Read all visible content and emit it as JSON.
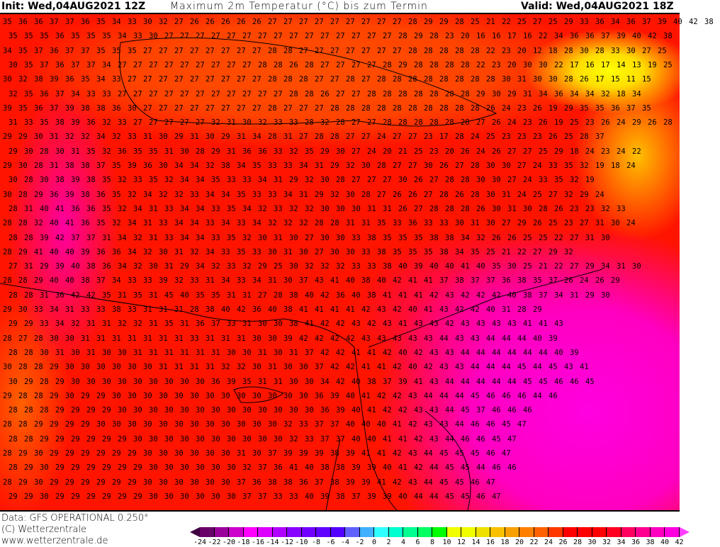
{
  "header": {
    "init": "Init: Wed,04AUG2021 12Z",
    "title": "Maximum 2m Temperatur (°C) bis zum Termin",
    "valid": "Valid: Wed,04AUG2021 18Z"
  },
  "map": {
    "rows": [
      "35 36 36 37 37 36 35 34 33 30 32 27 26 26 26 26 26 27 27 27 27 27 27 27 27 27 28 29 29 28 25 21 22 25 27 25 29 33 36 34 36 37 39 40 42 38",
      "35 35 35 36 35 35 35 34 33 30 27 27 27 27 27 27 27 27 27 27 27 27 27 27 27 28 29 28 23 20 16 16 17 16 22 34 36 36 37 39 40 42 38",
      "34 35 37 36 37 37 35 35 35 27 27 27 27 27 27 27 27 28 28 27 27 27 27 27 27 27 28 28 28 28 28 22 23 20 12 18 28 30 28 33 30 27 25",
      "30 35 37 36 37 37 34 27 27 27 27 27 27 27 27 27 28 28 26 28 27 27 27 27 28 29 28 28 28 28 22 23 20 30 30 22 17 16 17 14 13 19 25",
      "30 32 38 39 36 35 34 33 27 27 27 27 27 27 27 27 27 28 28 28 27 27 28 27 28 28 28 28 28 28 28 28 30 31 30 30 28 26 17 15 11 15",
      "32 35 36 37 34 33 33 27 27 27 27 27 27 27 27 27 27 27 28 28 26 27 27 28 28 28 28 28 28 28 29 30 29 31 34 36 34 34 32 18 34",
      "39 35 36 37 39 38 38 36 30 27 27 27 27 27 27 27 27 28 27 27 27 28 28 28 28 28 28 28 28 28 28 26 24 23 26 19 29 35 35 36 37 35",
      "31 33 35 38 39 36 32 33 27 27 27 27 27 32 31 30 32 33 33 28 32 28 27 27 28 28 28 28 28 28 27 26 24 23 26 19 25 23 26 24 29 26 28",
      "29 29 30 31 32 32 34 32 33 31 30 29 31 30 29 31 34 28 31 27 28 28 27 27 24 27 27 23 17 28 24 25 23 23 23 26 25 28 37",
      "29 30 28 30 31 35 32 36 35 35 31 30 28 29 31 36 36 33 32 35 29 30 27 24 20 21 25 23 20 26 24 26 27 27 25 29 18 24 23 24 22",
      "29 30 28 31 38 38 37 35 39 36 30 34 34 32 38 34 35 33 33 34 31 29 32 30 28 27 27 30 26 27 28 30 30 27 24 33 35 32 19 18 24",
      "30 28 30 38 39 38 35 32 33 35 32 34 34 35 33 33 34 31 29 32 30 28 27 27 27 30 26 27 28 28 30 30 27 24 33 35 32 19",
      "30 28 29 36 39 38 36 35 32 34 32 32 33 34 34 35 33 33 34 31 29 32 30 28 27 26 26 27 28 26 28 30 31 24 25 27 32 29 24",
      "28 31 40 41 36 36 35 32 34 31 33 34 34 33 35 34 32 33 32 32 30 30 30 31 31 26 27 28 28 28 26 30 31 30 28 26 23 23 32 33",
      "28 28 32 40 41 36 35 32 34 31 33 34 34 33 34 33 34 32 32 32 28 28 31 31 35 33 36 33 33 30 31 30 27 29 26 25 23 27 31 30 24",
      "28 28 39 42 37 37 31 34 32 31 33 34 34 33 35 32 30 31 30 27 30 30 33 38 35 35 35 38 38 34 32 26 26 25 25 22 27 31 30",
      "28 29 41 40 40 39 36 36 34 32 30 31 32 34 33 35 33 30 31 30 27 30 30 33 38 35 35 35 38 34 35 25 21 22 27 29 32",
      "27 31 29 39 40 38 36 34 32 30 31 29 34 32 33 32 29 25 30 32 32 32 33 33 38 40 39 40 40 41 40 35 30 25 21 22 27 29 34 31 30",
      "28 28 29 40 40 38 37 34 33 33 39 32 33 31 34 33 34 31 30 37 43 41 40 38 40 42 41 41 37 38 37 37 36 38 35 37 26 24 26 29",
      "28 28 31 36 42 42 35 31 35 31 45 40 35 35 31 31 27 28 38 40 42 36 40 38 41 41 41 42 43 42 42 42 40 38 37 34 31 29 30",
      "29 30 33 34 31 33 33 38 33 31 31 31 28 38 40 42 36 40 38 41 41 41 41 42 43 42 40 41 43 42 42 40 31 28 29",
      "29 29 33 34 32 31 31 32 32 31 35 31 36 37 33 31 30 30 38 41 42 42 43 42 43 41 43 43 42 43 43 43 43 41 41 43",
      "28 27 28 30 30 31 31 31 31 31 31 31 33 31 31 31 30 30 39 42 42 42 42 43 43 43 43 43 44 43 43 44 44 44 40 39",
      "28 28 30 31 30 31 30 30 31 31 31 31 31 31 30 30 31 30 31 37 42 42 41 41 42 40 42 43 43 44 44 44 44 44 44 40 39",
      "30 28 28 29 30 30 30 30 30 30 31 31 31 31 32 32 30 31 30 30 37 42 42 41 41 42 40 42 43 43 44 44 44 45 44 45 43 41",
      "30 29 28 29 30 30 30 30 30 30 30 30 30 36 39 35 31 31 30 30 34 42 40 38 37 39 41 43 44 44 44 44 44 45 45 46 46 45",
      "29 28 28 29 30 29 29 30 30 30 30 30 30 30 30 30 30 30 30 30 36 39 40 41 42 42 43 44 44 44 45 46 46 46 44 46",
      "28 28 28 29 29 29 29 30 30 30 30 30 30 30 30 30 30 30 30 30 36 39 40 41 42 42 43 43 44 45 37 46 46 46",
      "28 28 29 29 29 29 30 30 30 30 30 30 30 30 30 30 30 30 32 33 37 37 40 40 40 41 42 43 43 44 46 46 45 47",
      "28 28 29 29 29 29 29 29 30 30 30 30 30 30 30 30 30 30 32 33 37 37 40 40 41 41 42 43 44 46 46 45 47",
      "28 29 30 29 29 29 29 29 29 30 30 30 30 30 30 31 30 37 39 39 39 38 39 41 41 42 43 44 45 45 45 46 47",
      "28 29 30 29 29 29 29 29 29 30 30 30 30 30 30 32 37 36 41 40 38 38 39 39 40 41 42 44 45 45 44 46 46",
      "28 29 30 29 29 29 29 29 29 30 30 30 30 30 30 37 36 38 38 36 37 38 39 39 41 42 43 44 45 45 46 47",
      "29 29 30 29 29 29 29 29 29 30 30 30 30 30 30 37 37 33 33 40 39 38 37 39 39 40 44 44 45 45 46 47"
    ]
  },
  "footer": {
    "data_source": "Data: GFS OPERATIONAL 0.250°",
    "copyright": "(C) Wetterzentrale",
    "website": "www.wetterzentrale.de"
  },
  "legend": {
    "low_arrow_color": "#400040",
    "high_arrow_color": "#ff40ff",
    "colors": [
      "#680068",
      "#9a009a",
      "#cc00cc",
      "#ff00ff",
      "#dd00ff",
      "#b000ff",
      "#8800ff",
      "#7000ff",
      "#6000ff",
      "#5400ff",
      "#6060ff",
      "#40b0ff",
      "#30ffff",
      "#00ffd0",
      "#00ff90",
      "#00ff60",
      "#00ff00",
      "#f0ff00",
      "#f0ff00",
      "#f0e000",
      "#f8c000",
      "#f8a000",
      "#ff8000",
      "#ff6000",
      "#ff3800",
      "#ff0000",
      "#ff0000",
      "#ff0000",
      "#ff0020",
      "#ff0060",
      "#ff0090",
      "#ff00c0",
      "#ff00e0"
    ],
    "ticks": [
      "-24",
      "-22",
      "-20",
      "-18",
      "-16",
      "-14",
      "-12",
      "-10",
      "-8",
      "-6",
      "-4",
      "-2",
      "0",
      "2",
      "4",
      "6",
      "8",
      "10",
      "12",
      "14",
      "16",
      "18",
      "20",
      "22",
      "24",
      "26",
      "28",
      "30",
      "32",
      "34",
      "36",
      "38",
      "40",
      "42"
    ]
  }
}
